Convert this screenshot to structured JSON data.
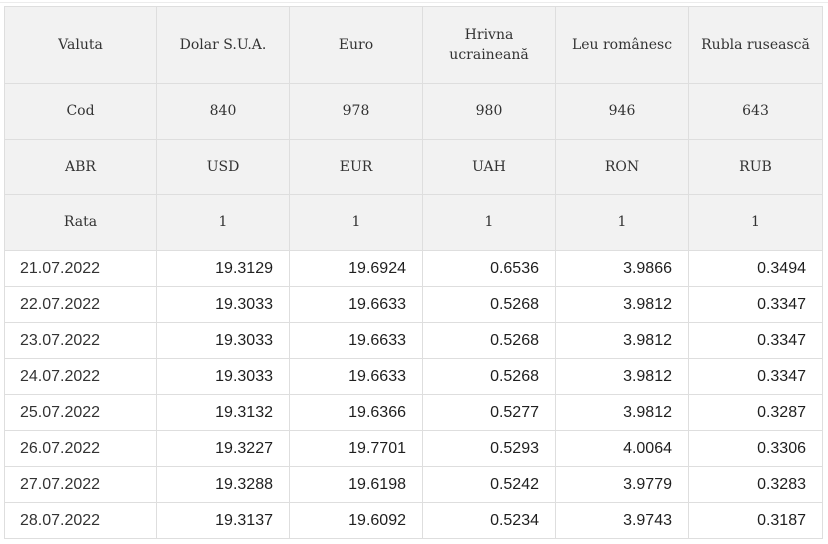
{
  "table": {
    "header_rows": [
      {
        "label": "Valuta",
        "cells": [
          "Dolar S.U.A.",
          "Euro",
          "Hrivna ucraineană",
          "Leu românesc",
          "Rubla rusească"
        ]
      },
      {
        "label": "Cod",
        "cells": [
          "840",
          "978",
          "980",
          "946",
          "643"
        ]
      },
      {
        "label": "ABR",
        "cells": [
          "USD",
          "EUR",
          "UAH",
          "RON",
          "RUB"
        ]
      },
      {
        "label": "Rata",
        "cells": [
          "1",
          "1",
          "1",
          "1",
          "1"
        ]
      }
    ],
    "rows": [
      {
        "date": "21.07.2022",
        "values": [
          "19.3129",
          "19.6924",
          "0.6536",
          "3.9866",
          "0.3494"
        ]
      },
      {
        "date": "22.07.2022",
        "values": [
          "19.3033",
          "19.6633",
          "0.5268",
          "3.9812",
          "0.3347"
        ]
      },
      {
        "date": "23.07.2022",
        "values": [
          "19.3033",
          "19.6633",
          "0.5268",
          "3.9812",
          "0.3347"
        ]
      },
      {
        "date": "24.07.2022",
        "values": [
          "19.3033",
          "19.6633",
          "0.5268",
          "3.9812",
          "0.3347"
        ]
      },
      {
        "date": "25.07.2022",
        "values": [
          "19.3132",
          "19.6366",
          "0.5277",
          "3.9812",
          "0.3287"
        ]
      },
      {
        "date": "26.07.2022",
        "values": [
          "19.3227",
          "19.7701",
          "0.5293",
          "4.0064",
          "0.3306"
        ]
      },
      {
        "date": "27.07.2022",
        "values": [
          "19.3288",
          "19.6198",
          "0.5242",
          "3.9779",
          "0.3283"
        ]
      },
      {
        "date": "28.07.2022",
        "values": [
          "19.3137",
          "19.6092",
          "0.5234",
          "3.9743",
          "0.3187"
        ]
      }
    ]
  }
}
